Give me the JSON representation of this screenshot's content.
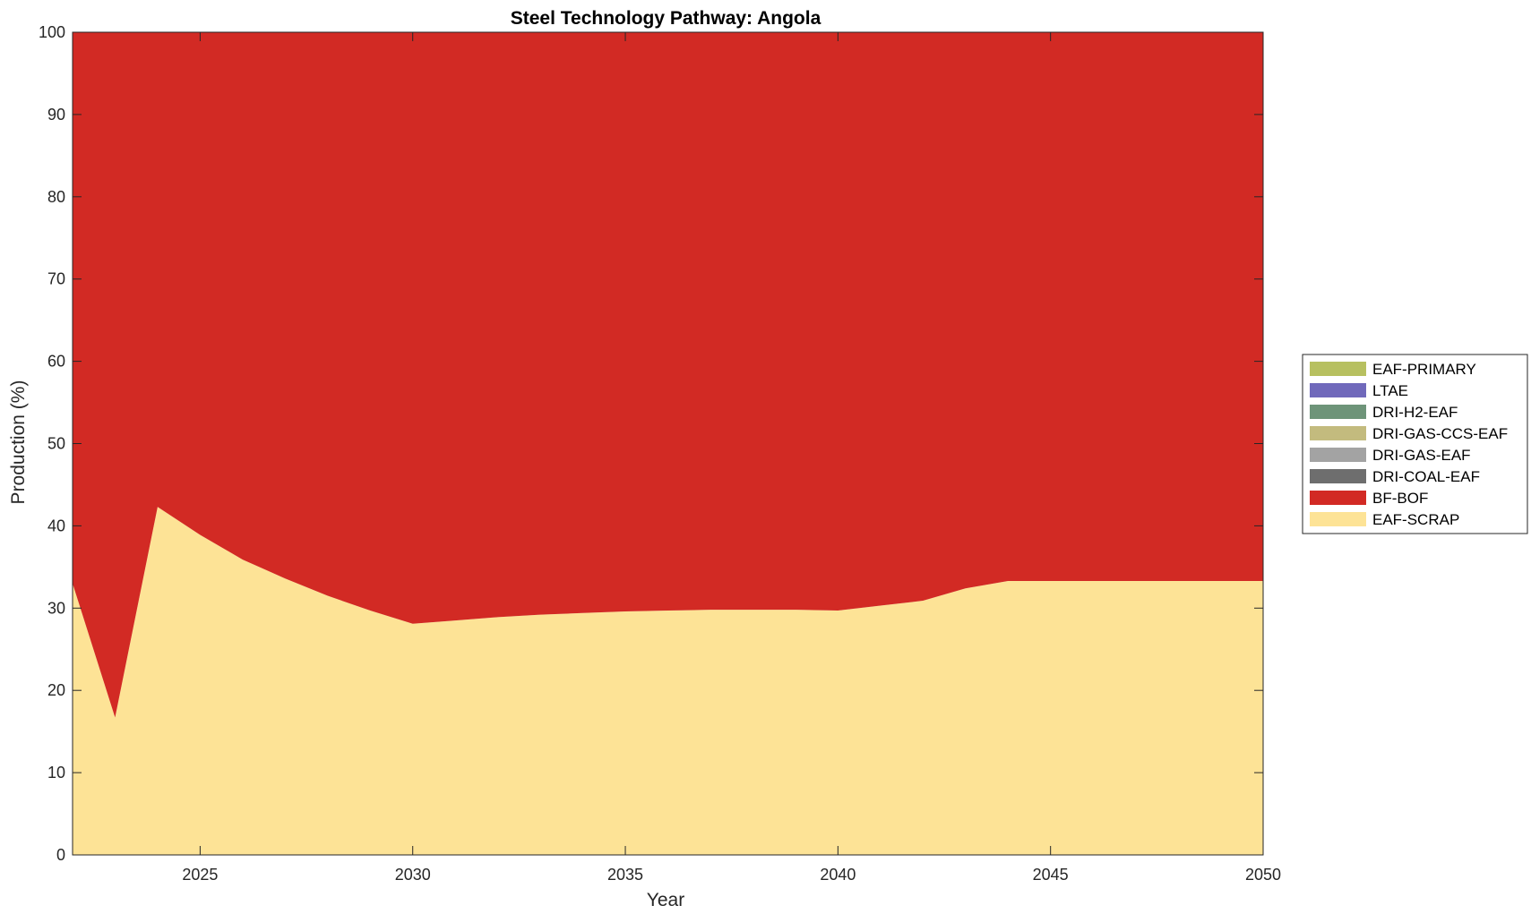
{
  "chart_data": {
    "type": "area",
    "stacked": true,
    "title": "Steel Technology Pathway: Angola",
    "xlabel": "Year",
    "ylabel": "Production (%)",
    "xlim": [
      2022,
      2050
    ],
    "ylim": [
      0,
      100
    ],
    "xticks": [
      2025,
      2030,
      2035,
      2040,
      2045,
      2050
    ],
    "yticks": [
      0,
      10,
      20,
      30,
      40,
      50,
      60,
      70,
      80,
      90,
      100
    ],
    "grid": false,
    "legend_position": "right",
    "x": [
      2022,
      2023,
      2024,
      2025,
      2026,
      2027,
      2028,
      2029,
      2030,
      2031,
      2032,
      2033,
      2034,
      2035,
      2036,
      2037,
      2038,
      2039,
      2040,
      2041,
      2042,
      2043,
      2044,
      2045,
      2046,
      2047,
      2048,
      2049,
      2050
    ],
    "series": [
      {
        "name": "EAF-SCRAP",
        "color": "#FDE396",
        "values": [
          33.0,
          16.7,
          42.3,
          38.9,
          35.9,
          33.6,
          31.5,
          29.7,
          28.1,
          28.5,
          28.9,
          29.2,
          29.4,
          29.6,
          29.7,
          29.8,
          29.8,
          29.8,
          29.7,
          30.3,
          30.9,
          32.4,
          33.3,
          33.3,
          33.3,
          33.3,
          33.3,
          33.3,
          33.3
        ]
      },
      {
        "name": "BF-BOF",
        "color": "#D22A24",
        "values": [
          67.0,
          83.3,
          57.7,
          61.1,
          64.1,
          66.4,
          68.5,
          70.3,
          71.9,
          71.5,
          71.1,
          70.8,
          70.6,
          70.4,
          70.3,
          70.2,
          70.2,
          70.2,
          70.3,
          69.7,
          69.1,
          67.6,
          66.7,
          66.7,
          66.7,
          66.7,
          66.7,
          66.7,
          66.7
        ]
      },
      {
        "name": "DRI-COAL-EAF",
        "color": "#6E6E6E",
        "values": [
          0,
          0,
          0,
          0,
          0,
          0,
          0,
          0,
          0,
          0,
          0,
          0,
          0,
          0,
          0,
          0,
          0,
          0,
          0,
          0,
          0,
          0,
          0,
          0,
          0,
          0,
          0,
          0,
          0
        ]
      },
      {
        "name": "DRI-GAS-EAF",
        "color": "#A3A3A3",
        "values": [
          0,
          0,
          0,
          0,
          0,
          0,
          0,
          0,
          0,
          0,
          0,
          0,
          0,
          0,
          0,
          0,
          0,
          0,
          0,
          0,
          0,
          0,
          0,
          0,
          0,
          0,
          0,
          0,
          0
        ]
      },
      {
        "name": "DRI-GAS-CCS-EAF",
        "color": "#C3BB7E",
        "values": [
          0,
          0,
          0,
          0,
          0,
          0,
          0,
          0,
          0,
          0,
          0,
          0,
          0,
          0,
          0,
          0,
          0,
          0,
          0,
          0,
          0,
          0,
          0,
          0,
          0,
          0,
          0,
          0,
          0
        ]
      },
      {
        "name": "DRI-H2-EAF",
        "color": "#6E9479",
        "values": [
          0,
          0,
          0,
          0,
          0,
          0,
          0,
          0,
          0,
          0,
          0,
          0,
          0,
          0,
          0,
          0,
          0,
          0,
          0,
          0,
          0,
          0,
          0,
          0,
          0,
          0,
          0,
          0,
          0
        ]
      },
      {
        "name": "LTAE",
        "color": "#7069BB",
        "values": [
          0,
          0,
          0,
          0,
          0,
          0,
          0,
          0,
          0,
          0,
          0,
          0,
          0,
          0,
          0,
          0,
          0,
          0,
          0,
          0,
          0,
          0,
          0,
          0,
          0,
          0,
          0,
          0,
          0
        ]
      },
      {
        "name": "EAF-PRIMARY",
        "color": "#B7C060",
        "values": [
          0,
          0,
          0,
          0,
          0,
          0,
          0,
          0,
          0,
          0,
          0,
          0,
          0,
          0,
          0,
          0,
          0,
          0,
          0,
          0,
          0,
          0,
          0,
          0,
          0,
          0,
          0,
          0,
          0
        ]
      }
    ],
    "legend_order": [
      "EAF-PRIMARY",
      "LTAE",
      "DRI-H2-EAF",
      "DRI-GAS-CCS-EAF",
      "DRI-GAS-EAF",
      "DRI-COAL-EAF",
      "BF-BOF",
      "EAF-SCRAP"
    ]
  }
}
